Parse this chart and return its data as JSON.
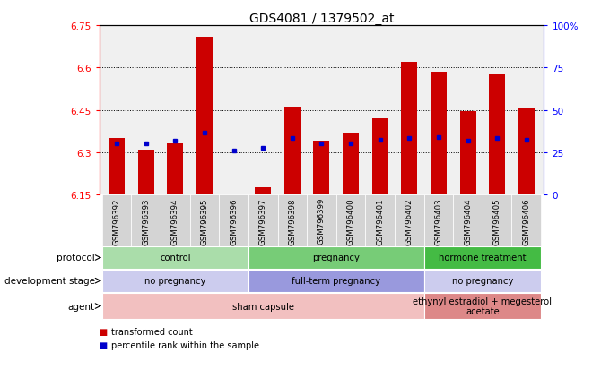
{
  "title": "GDS4081 / 1379502_at",
  "samples": [
    "GSM796392",
    "GSM796393",
    "GSM796394",
    "GSM796395",
    "GSM796396",
    "GSM796397",
    "GSM796398",
    "GSM796399",
    "GSM796400",
    "GSM796401",
    "GSM796402",
    "GSM796403",
    "GSM796404",
    "GSM796405",
    "GSM796406"
  ],
  "bar_values": [
    6.35,
    6.31,
    6.33,
    6.71,
    6.151,
    6.175,
    6.46,
    6.34,
    6.37,
    6.42,
    6.62,
    6.585,
    6.445,
    6.575,
    6.455
  ],
  "percentile_values": [
    6.33,
    6.33,
    6.34,
    6.37,
    6.305,
    6.315,
    6.35,
    6.33,
    6.33,
    6.345,
    6.35,
    6.355,
    6.34,
    6.35,
    6.345
  ],
  "y_min": 6.15,
  "y_max": 6.75,
  "y_ticks": [
    6.15,
    6.3,
    6.45,
    6.6,
    6.75
  ],
  "y_ticks_labels": [
    "6.15",
    "6.3",
    "6.45",
    "6.6",
    "6.75"
  ],
  "right_y_ticks_pct": [
    0,
    25,
    50,
    75,
    100
  ],
  "right_y_labels": [
    "0",
    "25",
    "50",
    "75",
    "100%"
  ],
  "bar_color": "#cc0000",
  "percentile_color": "#0000cc",
  "bar_bottom": 6.15,
  "protocol_groups": [
    {
      "label": "control",
      "start": 0,
      "end": 4,
      "color": "#aaddaa"
    },
    {
      "label": "pregnancy",
      "start": 5,
      "end": 10,
      "color": "#77cc77"
    },
    {
      "label": "hormone treatment",
      "start": 11,
      "end": 14,
      "color": "#44bb44"
    }
  ],
  "dev_stage_groups": [
    {
      "label": "no pregnancy",
      "start": 0,
      "end": 4,
      "color": "#ccccee"
    },
    {
      "label": "full-term pregnancy",
      "start": 5,
      "end": 10,
      "color": "#9999dd"
    },
    {
      "label": "no pregnancy",
      "start": 11,
      "end": 14,
      "color": "#ccccee"
    }
  ],
  "agent_groups": [
    {
      "label": "sham capsule",
      "start": 0,
      "end": 10,
      "color": "#f2c0c0"
    },
    {
      "label": "ethynyl estradiol + megesterol\nacetate",
      "start": 11,
      "end": 14,
      "color": "#dd8888"
    }
  ],
  "legend_items": [
    {
      "label": "transformed count",
      "color": "#cc0000"
    },
    {
      "label": "percentile rank within the sample",
      "color": "#0000cc"
    }
  ],
  "row_labels": [
    "protocol",
    "development stage",
    "agent"
  ]
}
